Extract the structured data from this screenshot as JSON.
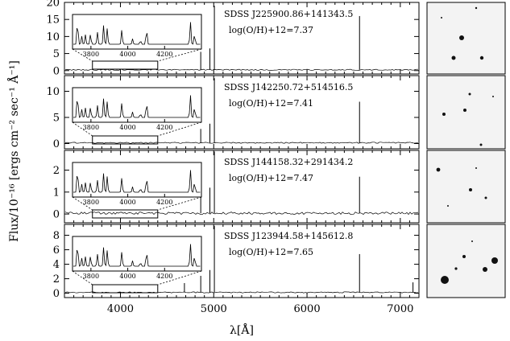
{
  "figure": {
    "ylabel": "Flux/10⁻¹⁶  [ergs cm⁻² sec⁻¹ Å⁻¹]",
    "xlabel": "λ[Å]"
  },
  "chart_data": {
    "type": "line",
    "x_ticks": [
      4000,
      5000,
      6000,
      7000
    ],
    "xlim": [
      3400,
      7200
    ],
    "inset": {
      "x_ticks": [
        3800,
        4000,
        4200
      ],
      "xlim": [
        3700,
        4400
      ]
    },
    "panels": [
      {
        "object": "SDSS J225900.86+141343.5",
        "metallicity": "log(O/H)+12=7.37",
        "ylim": [
          -1,
          20
        ],
        "y_ticks": [
          0,
          5,
          10,
          15,
          20
        ],
        "inset_y_ticks": [],
        "lines": [
          {
            "x": 4861,
            "y": 5.5
          },
          {
            "x": 4959,
            "y": 6.5
          },
          {
            "x": 5007,
            "y": 19
          },
          {
            "x": 6563,
            "y": 16
          }
        ]
      },
      {
        "object": "SDSS J142250.72+514516.5",
        "metallicity": "log(O/H)+12=7.41",
        "ylim": [
          -1,
          13
        ],
        "y_ticks": [
          0,
          5,
          10
        ],
        "inset_y_ticks": [],
        "lines": [
          {
            "x": 4861,
            "y": 2.8
          },
          {
            "x": 4959,
            "y": 3.8
          },
          {
            "x": 5007,
            "y": 12.5
          },
          {
            "x": 6563,
            "y": 8
          }
        ]
      },
      {
        "object": "SDSS J144158.32+291434.2",
        "metallicity": "log(O/H)+12=7.47",
        "ylim": [
          -0.4,
          2.9
        ],
        "y_ticks": [
          0,
          1,
          2
        ],
        "inset_y_ticks": [],
        "lines": [
          {
            "x": 4861,
            "y": 0.9
          },
          {
            "x": 4959,
            "y": 1.2
          },
          {
            "x": 5007,
            "y": 2.85
          },
          {
            "x": 6563,
            "y": 1.7
          }
        ]
      },
      {
        "object": "SDSS J123944.58+145612.8",
        "metallicity": "log(O/H)+12=7.65",
        "ylim": [
          -0.6,
          9.5
        ],
        "y_ticks": [
          0,
          2,
          4,
          6,
          8
        ],
        "inset_y_ticks": [],
        "lines": [
          {
            "x": 4686,
            "y": 1.4
          },
          {
            "x": 4861,
            "y": 2.4
          },
          {
            "x": 4959,
            "y": 3.2
          },
          {
            "x": 5007,
            "y": 9.3
          },
          {
            "x": 6563,
            "y": 5.4
          },
          {
            "x": 7136,
            "y": 1.5
          }
        ]
      }
    ]
  }
}
